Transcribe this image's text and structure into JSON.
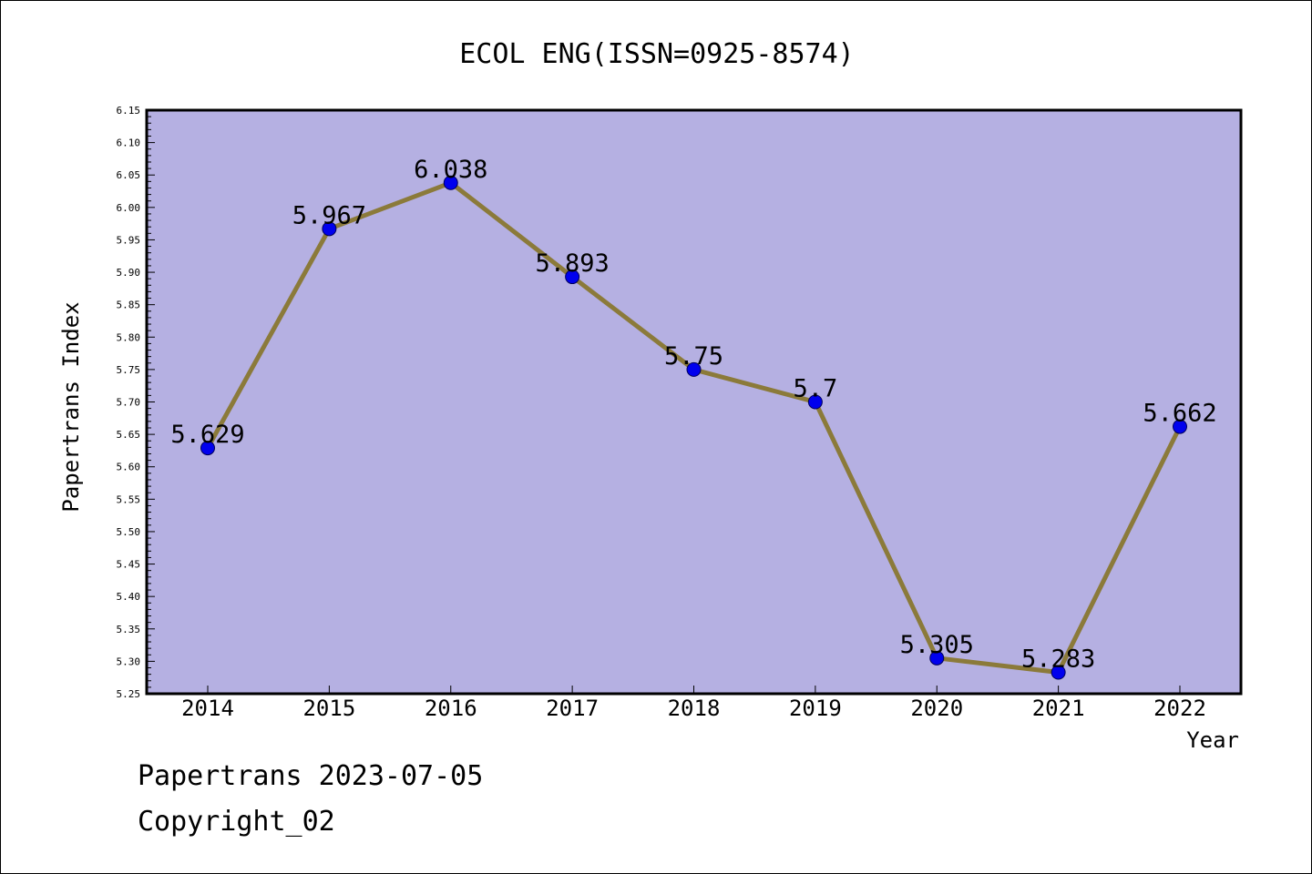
{
  "chart_data": {
    "type": "line",
    "title": "ECOL ENG(ISSN=0925-8574)",
    "xlabel": "Year",
    "ylabel": "Papertrans Index",
    "categories": [
      "2014",
      "2015",
      "2016",
      "2017",
      "2018",
      "2019",
      "2020",
      "2021",
      "2022"
    ],
    "series": [
      {
        "values": [
          5.629,
          5.967,
          6.038,
          5.893,
          5.75,
          5.7,
          5.305,
          5.283,
          5.662
        ],
        "labels": [
          "5.629",
          "5.967",
          "6.038",
          "5.893",
          "5.75",
          "5.7",
          "5.305",
          "5.283",
          "5.662"
        ]
      }
    ],
    "ylim": [
      5.25,
      6.15
    ],
    "yticks": [
      "5.25",
      "5.30",
      "5.35",
      "5.40",
      "5.45",
      "5.50",
      "5.55",
      "5.60",
      "5.65",
      "5.70",
      "5.75",
      "5.80",
      "5.85",
      "5.90",
      "5.95",
      "6.00",
      "6.05",
      "6.10",
      "6.15"
    ],
    "grid": false,
    "legend": "none",
    "colors": {
      "plot_background": "#b5b0e2",
      "line": "#8b7a3a",
      "marker": "#0000ee",
      "marker_edge": "#00005a"
    }
  },
  "footer": {
    "date_line": "Papertrans 2023-07-05",
    "copyright_line": "Copyright_02"
  }
}
